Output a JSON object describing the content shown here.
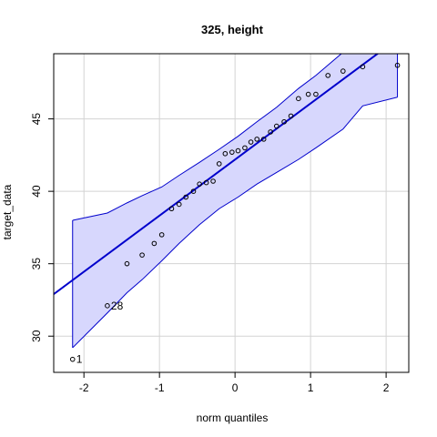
{
  "chart_data": {
    "type": "scatter",
    "title": "325, height",
    "xlabel": "norm quantiles",
    "ylabel": "target_data",
    "xlim": [
      -2.4,
      2.3
    ],
    "ylim": [
      27.5,
      49.5
    ],
    "x_ticks": [
      -2,
      -1,
      0,
      1,
      2
    ],
    "y_ticks": [
      30,
      35,
      40,
      45
    ],
    "grid": true,
    "colors": {
      "points": "#000000",
      "reference_line": "#0000cc",
      "confidence_band_fill": "#d7d7fd",
      "confidence_band_edge": "#0000cc",
      "grid": "#d3d3d3",
      "frame": "#000000"
    },
    "points": [
      {
        "x": -2.15,
        "y": 28.4
      },
      {
        "x": -1.69,
        "y": 32.1
      },
      {
        "x": -1.43,
        "y": 35.0
      },
      {
        "x": -1.23,
        "y": 35.6
      },
      {
        "x": -1.07,
        "y": 36.4
      },
      {
        "x": -0.97,
        "y": 37.0
      },
      {
        "x": -0.84,
        "y": 38.8
      },
      {
        "x": -0.74,
        "y": 39.1
      },
      {
        "x": -0.65,
        "y": 39.6
      },
      {
        "x": -0.55,
        "y": 40.0
      },
      {
        "x": -0.47,
        "y": 40.5
      },
      {
        "x": -0.38,
        "y": 40.6
      },
      {
        "x": -0.29,
        "y": 40.7
      },
      {
        "x": -0.21,
        "y": 41.9
      },
      {
        "x": -0.13,
        "y": 42.6
      },
      {
        "x": -0.04,
        "y": 42.7
      },
      {
        "x": 0.04,
        "y": 42.8
      },
      {
        "x": 0.13,
        "y": 43.0
      },
      {
        "x": 0.21,
        "y": 43.4
      },
      {
        "x": 0.29,
        "y": 43.6
      },
      {
        "x": 0.38,
        "y": 43.6
      },
      {
        "x": 0.47,
        "y": 44.1
      },
      {
        "x": 0.55,
        "y": 44.5
      },
      {
        "x": 0.65,
        "y": 44.8
      },
      {
        "x": 0.74,
        "y": 45.2
      },
      {
        "x": 0.84,
        "y": 46.4
      },
      {
        "x": 0.97,
        "y": 46.7
      },
      {
        "x": 1.07,
        "y": 46.7
      },
      {
        "x": 1.23,
        "y": 48.0
      },
      {
        "x": 1.43,
        "y": 48.3
      },
      {
        "x": 1.69,
        "y": 48.6
      },
      {
        "x": 2.15,
        "y": 48.7
      }
    ],
    "point_labels": [
      {
        "x": -2.15,
        "y": 28.4,
        "text": "1"
      },
      {
        "x": -1.69,
        "y": 32.1,
        "text": "28"
      }
    ],
    "reference_line": {
      "x": [
        -2.4,
        2.3
      ],
      "y": [
        32.9,
        51.1
      ]
    },
    "confidence_band": {
      "x": [
        -2.15,
        -1.69,
        -1.43,
        -1.23,
        -0.97,
        -0.74,
        -0.47,
        -0.21,
        0.04,
        0.29,
        0.55,
        0.84,
        1.07,
        1.43,
        1.69,
        2.15
      ],
      "upper": [
        38.0,
        38.5,
        39.2,
        39.7,
        40.3,
        41.1,
        42.0,
        42.9,
        43.8,
        44.8,
        45.8,
        47.1,
        48.0,
        49.6,
        50.0,
        50.0
      ],
      "lower": [
        29.2,
        31.6,
        33.0,
        33.9,
        35.2,
        36.4,
        37.7,
        38.8,
        39.6,
        40.5,
        41.3,
        42.2,
        43.0,
        44.3,
        45.9,
        46.5
      ]
    }
  }
}
